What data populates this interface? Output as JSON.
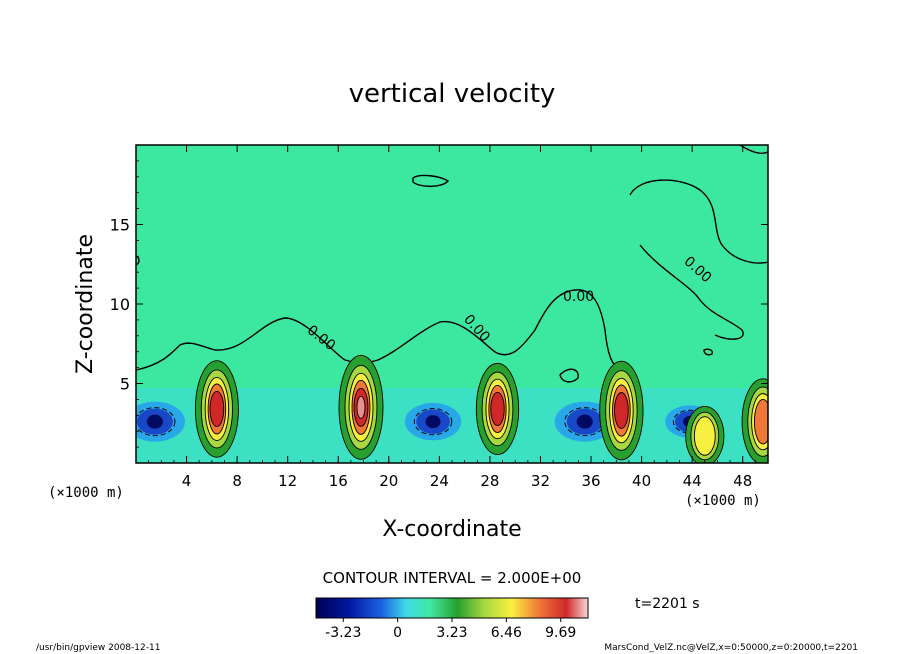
{
  "chart_data": {
    "type": "heatmap",
    "title": "vertical velocity",
    "xlabel": "X-coordinate",
    "ylabel": "Z-coordinate",
    "x_unit": "(×1000 m)",
    "y_unit": "(×1000 m)",
    "xlim": [
      0,
      50
    ],
    "ylim": [
      0,
      20
    ],
    "x_ticks": [
      "4",
      "8",
      "12",
      "16",
      "20",
      "24",
      "28",
      "32",
      "36",
      "40",
      "44",
      "48"
    ],
    "y_ticks": [
      "5",
      "10",
      "15"
    ],
    "contour_labels": [
      "0.00",
      "0.00",
      "0.00",
      "0.00"
    ],
    "contour_interval": "CONTOUR INTERVAL = 2.000E+00",
    "colorbar_ticks": [
      "-3.23",
      "0",
      "3.23",
      "6.46",
      "9.69"
    ],
    "colorbar_range": [
      -4.85,
      11.31
    ],
    "time_label": "t=2201 s",
    "footer_left": "/usr/bin/gpview   2008-12-11",
    "footer_right": "MarsCond_VelZ.nc@VelZ,x=0:50000,z=0:20000,t=2201",
    "updraft_cores": [
      {
        "x": 6.4,
        "z": 3.4,
        "w": 9.0
      },
      {
        "x": 17.8,
        "z": 3.5,
        "w": 9.7
      },
      {
        "x": 28.6,
        "z": 3.4,
        "w": 8.5
      },
      {
        "x": 38.4,
        "z": 3.3,
        "w": 9.2
      },
      {
        "x": 45.0,
        "z": 1.7,
        "w": 5.5
      },
      {
        "x": 49.6,
        "z": 2.6,
        "w": 8.0
      }
    ],
    "downdraft_cores": [
      {
        "x": 1.5,
        "z": 2.6,
        "w": -3.2
      },
      {
        "x": 23.5,
        "z": 2.6,
        "w": -3.0
      },
      {
        "x": 35.5,
        "z": 2.6,
        "w": -3.2
      },
      {
        "x": 43.8,
        "z": 2.6,
        "w": -2.6
      }
    ]
  }
}
